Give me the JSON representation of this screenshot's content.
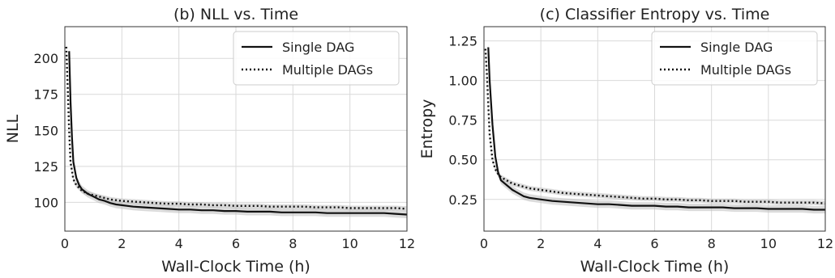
{
  "chart_data": [
    {
      "type": "line",
      "title": "(b) NLL vs. Time",
      "xlabel": "Wall-Clock Time (h)",
      "ylabel": "NLL",
      "xlim": [
        0,
        12
      ],
      "ylim": [
        80,
        222
      ],
      "xticks": [
        0,
        2,
        4,
        6,
        8,
        10,
        12
      ],
      "yticks": [
        100,
        125,
        150,
        175,
        200
      ],
      "grid": true,
      "legend_position": "top-right",
      "series": [
        {
          "name": "Single DAG",
          "line_style": "solid",
          "color": "#111111",
          "x": [
            0.15,
            0.2,
            0.25,
            0.3,
            0.4,
            0.5,
            0.6,
            0.8,
            1.0,
            1.2,
            1.4,
            1.6,
            1.8,
            2.0,
            2.4,
            2.8,
            3.2,
            3.6,
            4.0,
            4.4,
            4.8,
            5.2,
            5.6,
            6.0,
            6.4,
            6.8,
            7.2,
            7.6,
            8.0,
            8.4,
            8.8,
            9.2,
            9.6,
            10.0,
            10.4,
            10.8,
            11.2,
            11.6,
            12.0
          ],
          "y": [
            205,
            170,
            145,
            128,
            117,
            112,
            109,
            106,
            104,
            102,
            101,
            99.5,
            98.5,
            98,
            97,
            96.5,
            96,
            95.5,
            95,
            95,
            94.5,
            94.5,
            94,
            94,
            93.5,
            93.5,
            93.5,
            93,
            93,
            93,
            93,
            92.5,
            92.5,
            92.5,
            92.5,
            92.5,
            92.5,
            92,
            91.5
          ]
        },
        {
          "name": "Multiple DAGs",
          "line_style": "dotted",
          "color": "#111111",
          "x": [
            0.05,
            0.1,
            0.15,
            0.2,
            0.3,
            0.4,
            0.5,
            0.6,
            0.8,
            1.0,
            1.2,
            1.4,
            1.6,
            1.8,
            2.0,
            2.4,
            2.8,
            3.2,
            3.6,
            4.0,
            4.4,
            4.8,
            5.2,
            5.6,
            6.0,
            6.4,
            6.8,
            7.2,
            7.6,
            8.0,
            8.4,
            8.8,
            9.2,
            9.6,
            10.0,
            10.4,
            10.8,
            11.2,
            11.6,
            12.0
          ],
          "y": [
            208,
            180,
            150,
            128,
            116,
            112,
            110,
            108,
            106,
            105,
            104,
            103,
            102,
            101.5,
            101,
            100.5,
            100,
            99.5,
            99,
            99,
            98.5,
            98.5,
            98,
            98,
            97.5,
            97.5,
            97.5,
            97,
            97,
            97,
            97,
            96.5,
            96.5,
            96.5,
            96,
            96,
            96,
            96,
            96,
            95.5
          ]
        }
      ]
    },
    {
      "type": "line",
      "title": "(c) Classifier Entropy vs. Time",
      "xlabel": "Wall-Clock Time (h)",
      "ylabel": "Entropy",
      "xlim": [
        0,
        12
      ],
      "ylim": [
        0.05,
        1.34
      ],
      "xticks": [
        0,
        2,
        4,
        6,
        8,
        10,
        12
      ],
      "yticks": [
        0.25,
        0.5,
        0.75,
        1.0,
        1.25
      ],
      "ytick_labels": [
        "0.25",
        "0.50",
        "0.75",
        "1.00",
        "1.25"
      ],
      "grid": true,
      "legend_position": "top-right",
      "series": [
        {
          "name": "Single DAG",
          "line_style": "solid",
          "color": "#111111",
          "x": [
            0.15,
            0.2,
            0.3,
            0.4,
            0.5,
            0.6,
            0.8,
            1.0,
            1.2,
            1.4,
            1.6,
            1.8,
            2.0,
            2.4,
            2.8,
            3.2,
            3.6,
            4.0,
            4.4,
            4.8,
            5.2,
            5.6,
            6.0,
            6.4,
            6.8,
            7.2,
            7.6,
            8.0,
            8.4,
            8.8,
            9.2,
            9.6,
            10.0,
            10.4,
            10.8,
            11.2,
            11.6,
            12.0
          ],
          "y": [
            1.21,
            1.0,
            0.72,
            0.52,
            0.42,
            0.37,
            0.34,
            0.31,
            0.29,
            0.27,
            0.26,
            0.255,
            0.25,
            0.24,
            0.235,
            0.23,
            0.225,
            0.22,
            0.22,
            0.215,
            0.21,
            0.21,
            0.21,
            0.205,
            0.205,
            0.2,
            0.2,
            0.2,
            0.2,
            0.195,
            0.195,
            0.195,
            0.19,
            0.19,
            0.19,
            0.19,
            0.185,
            0.185
          ]
        },
        {
          "name": "Multiple DAGs",
          "line_style": "dotted",
          "color": "#111111",
          "x": [
            0.05,
            0.1,
            0.15,
            0.2,
            0.3,
            0.4,
            0.5,
            0.6,
            0.8,
            1.0,
            1.2,
            1.4,
            1.6,
            1.8,
            2.0,
            2.4,
            2.8,
            3.2,
            3.6,
            4.0,
            4.4,
            4.8,
            5.2,
            5.6,
            6.0,
            6.4,
            6.8,
            7.2,
            7.6,
            8.0,
            8.4,
            8.8,
            9.2,
            9.6,
            10.0,
            10.4,
            10.8,
            11.2,
            11.6,
            12.0
          ],
          "y": [
            1.2,
            1.05,
            0.85,
            0.66,
            0.5,
            0.44,
            0.41,
            0.39,
            0.37,
            0.35,
            0.34,
            0.33,
            0.32,
            0.315,
            0.31,
            0.3,
            0.29,
            0.285,
            0.28,
            0.275,
            0.27,
            0.265,
            0.26,
            0.255,
            0.255,
            0.25,
            0.25,
            0.245,
            0.245,
            0.24,
            0.24,
            0.24,
            0.235,
            0.235,
            0.235,
            0.23,
            0.23,
            0.23,
            0.23,
            0.225
          ]
        }
      ]
    }
  ]
}
